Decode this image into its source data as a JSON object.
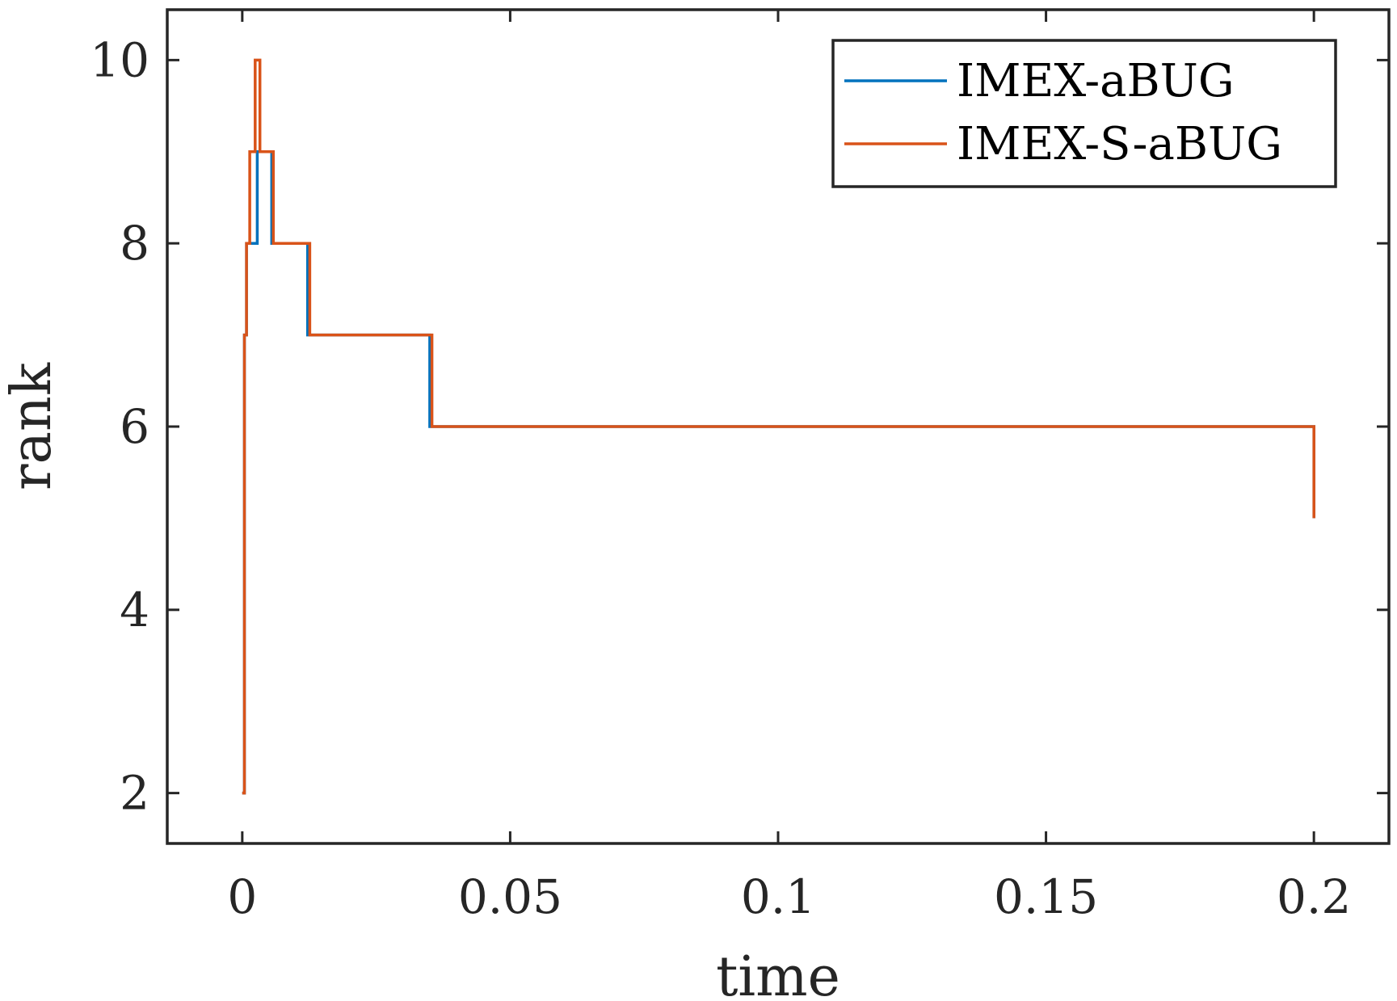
{
  "chart_data": {
    "type": "line",
    "title": "",
    "xlabel": "time",
    "ylabel": "rank",
    "xlim": [
      -0.014,
      0.214
    ],
    "ylim": [
      1.45,
      10.55
    ],
    "xticks": [
      0,
      0.05,
      0.1,
      0.15,
      0.2
    ],
    "xtick_labels": [
      "0",
      "0.05",
      "0.1",
      "0.15",
      "0.2"
    ],
    "yticks": [
      2,
      4,
      6,
      8,
      10
    ],
    "ytick_labels": [
      "2",
      "4",
      "6",
      "8",
      "10"
    ],
    "grid": false,
    "legend_position": "top-right",
    "series": [
      {
        "name": "IMEX-aBUG",
        "color": "#0072BD",
        "step": true,
        "x": [
          0,
          0.0004,
          0.0008,
          0.0028,
          0.0055,
          0.0122,
          0.035,
          0.2
        ],
        "y": [
          2,
          7,
          8,
          9,
          8,
          7,
          6,
          5
        ]
      },
      {
        "name": "IMEX-S-aBUG",
        "color": "#D95319",
        "step": true,
        "x": [
          0,
          0.0004,
          0.0008,
          0.0014,
          0.0024,
          0.0033,
          0.0058,
          0.0126,
          0.0354,
          0.2
        ],
        "y": [
          2,
          7,
          8,
          9,
          10,
          9,
          8,
          7,
          6,
          5
        ]
      }
    ]
  }
}
